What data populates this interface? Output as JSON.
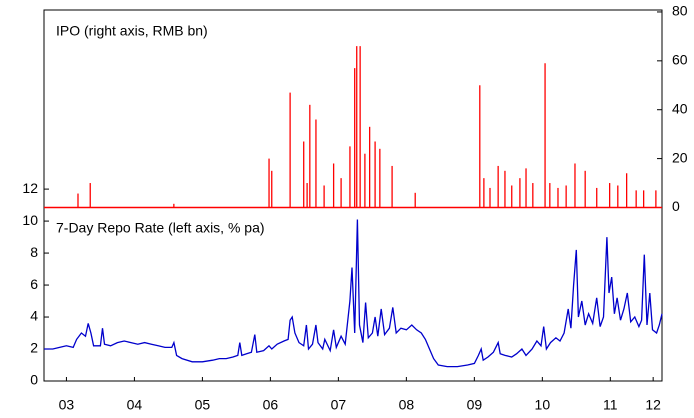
{
  "chart_data": {
    "type": "line",
    "annotations": [
      "IPO (right axis, RMB bn)",
      "7-Day Repo Rate (left axis, % pa)"
    ],
    "xlim": [
      2003.17,
      2012.26
    ],
    "xticks": [
      {
        "value": 2003.5,
        "label": "03"
      },
      {
        "value": 2004.5,
        "label": "04"
      },
      {
        "value": 2005.5,
        "label": "05"
      },
      {
        "value": 2006.5,
        "label": "06"
      },
      {
        "value": 2007.5,
        "label": "07"
      },
      {
        "value": 2008.5,
        "label": "08"
      },
      {
        "value": 2009.5,
        "label": "09"
      },
      {
        "value": 2010.5,
        "label": "10"
      },
      {
        "value": 2011.5,
        "label": "11"
      },
      {
        "value": 2012.13,
        "label": "12"
      }
    ],
    "ylim": [
      0,
      23.2
    ],
    "yticks": [
      0,
      2,
      4,
      6,
      8,
      10,
      12
    ],
    "y2lim": [
      -71,
      80.8
    ],
    "y2ticks": [
      0,
      20,
      40,
      60,
      80
    ],
    "series": [
      {
        "name": "IPO",
        "type": "spike",
        "axis": "y2",
        "color": "#ff0000",
        "x": [
          2003.67,
          2003.85,
          2005.08,
          2006.48,
          2006.52,
          2006.79,
          2006.99,
          2007.04,
          2007.08,
          2007.17,
          2007.29,
          2007.43,
          2007.54,
          2007.67,
          2007.74,
          2007.77,
          2007.82,
          2007.89,
          2007.96,
          2008.04,
          2008.11,
          2008.29,
          2008.63,
          2009.58,
          2009.64,
          2009.73,
          2009.85,
          2009.95,
          2010.05,
          2010.17,
          2010.26,
          2010.36,
          2010.54,
          2010.61,
          2010.73,
          2010.85,
          2010.98,
          2011.13,
          2011.3,
          2011.49,
          2011.61,
          2011.74,
          2011.88,
          2011.99,
          2012.17
        ],
        "values": [
          5.7,
          10,
          1.5,
          20,
          15,
          47,
          27,
          10,
          42,
          36,
          9,
          18,
          12,
          25,
          57,
          66,
          66,
          22,
          33,
          27,
          24,
          17,
          6,
          50,
          12,
          8,
          17,
          15,
          9,
          12,
          16,
          10,
          59,
          10,
          8,
          9,
          18,
          15,
          8,
          10,
          9,
          14,
          7,
          7,
          7
        ]
      },
      {
        "name": "7-Day Repo Rate",
        "axis": "y",
        "color": "#0000cc",
        "x": [
          2003.17,
          2003.3,
          2003.4,
          2003.5,
          2003.6,
          2003.65,
          2003.72,
          2003.78,
          2003.82,
          2003.86,
          2003.9,
          2004.0,
          2004.03,
          2004.06,
          2004.15,
          2004.25,
          2004.35,
          2004.45,
          2004.55,
          2004.65,
          2004.75,
          2004.85,
          2004.95,
          2005.05,
          2005.08,
          2005.12,
          2005.2,
          2005.35,
          2005.5,
          2005.65,
          2005.75,
          2005.85,
          2005.95,
          2006.02,
          2006.05,
          2006.08,
          2006.15,
          2006.22,
          2006.27,
          2006.3,
          2006.4,
          2006.48,
          2006.52,
          2006.6,
          2006.7,
          2006.76,
          2006.79,
          2006.82,
          2006.86,
          2006.92,
          2006.99,
          2007.03,
          2007.06,
          2007.12,
          2007.17,
          2007.2,
          2007.27,
          2007.3,
          2007.38,
          2007.43,
          2007.47,
          2007.54,
          2007.6,
          2007.67,
          2007.7,
          2007.74,
          2007.78,
          2007.81,
          2007.86,
          2007.9,
          2007.94,
          2008.0,
          2008.04,
          2008.08,
          2008.13,
          2008.18,
          2008.25,
          2008.3,
          2008.35,
          2008.42,
          2008.5,
          2008.58,
          2008.65,
          2008.72,
          2008.78,
          2008.84,
          2008.9,
          2008.97,
          2009.1,
          2009.25,
          2009.4,
          2009.5,
          2009.56,
          2009.6,
          2009.63,
          2009.7,
          2009.78,
          2009.85,
          2009.88,
          2009.95,
          2010.05,
          2010.12,
          2010.2,
          2010.26,
          2010.35,
          2010.42,
          2010.48,
          2010.52,
          2010.56,
          2010.62,
          2010.7,
          2010.76,
          2010.82,
          2010.88,
          2010.92,
          2010.96,
          2011.0,
          2011.03,
          2011.08,
          2011.13,
          2011.18,
          2011.24,
          2011.3,
          2011.35,
          2011.4,
          2011.45,
          2011.48,
          2011.52,
          2011.56,
          2011.6,
          2011.65,
          2011.7,
          2011.75,
          2011.8,
          2011.86,
          2011.92,
          2011.96,
          2012.0,
          2012.04,
          2012.08,
          2012.12,
          2012.18,
          2012.22,
          2012.26
        ],
        "values": [
          2.0,
          2.0,
          2.1,
          2.2,
          2.1,
          2.6,
          3.0,
          2.8,
          3.6,
          3.0,
          2.2,
          2.2,
          3.3,
          2.3,
          2.2,
          2.4,
          2.5,
          2.4,
          2.3,
          2.4,
          2.3,
          2.2,
          2.1,
          2.1,
          2.4,
          1.6,
          1.4,
          1.2,
          1.2,
          1.3,
          1.4,
          1.4,
          1.5,
          1.6,
          2.4,
          1.6,
          1.7,
          1.8,
          2.9,
          1.8,
          1.9,
          2.2,
          2.0,
          2.3,
          2.5,
          2.6,
          3.8,
          4.0,
          3.0,
          2.4,
          2.2,
          3.5,
          2.0,
          2.3,
          3.5,
          2.4,
          2.0,
          2.6,
          1.9,
          3.2,
          2.1,
          2.8,
          2.3,
          5.0,
          7.1,
          3.0,
          10.1,
          3.5,
          2.4,
          4.9,
          2.7,
          3.0,
          4.0,
          2.8,
          4.5,
          2.9,
          3.3,
          4.6,
          3.0,
          3.3,
          3.2,
          3.5,
          3.2,
          3.0,
          2.6,
          2.0,
          1.4,
          1.0,
          0.9,
          0.9,
          1.0,
          1.1,
          1.6,
          2.0,
          1.3,
          1.5,
          1.8,
          2.4,
          1.7,
          1.6,
          1.5,
          1.7,
          2.0,
          1.6,
          2.0,
          2.5,
          2.2,
          3.4,
          2.0,
          2.4,
          2.7,
          2.5,
          3.0,
          4.5,
          3.3,
          6.0,
          8.2,
          4.0,
          5.0,
          3.5,
          4.2,
          3.6,
          5.2,
          3.4,
          4.0,
          9.0,
          5.5,
          6.5,
          4.2,
          5.2,
          3.8,
          4.5,
          5.5,
          3.7,
          4.0,
          3.4,
          3.8,
          7.9,
          3.5,
          5.5,
          3.2,
          3.0,
          3.5,
          4.2
        ]
      }
    ]
  }
}
